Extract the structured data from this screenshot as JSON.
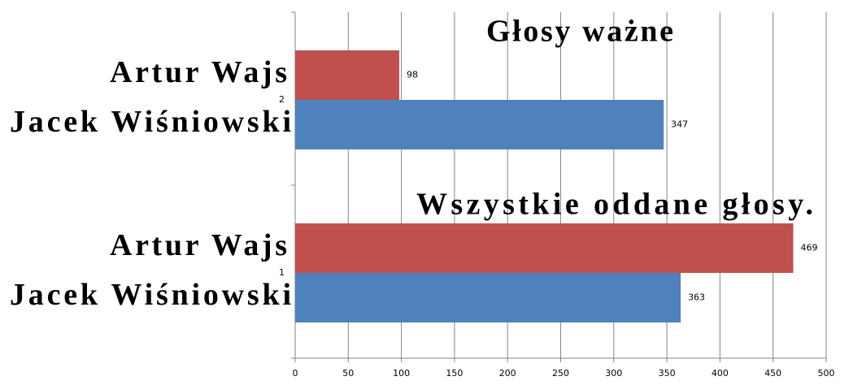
{
  "chart_data": {
    "type": "hbar",
    "categories": [
      "1",
      "2"
    ],
    "series": [
      {
        "name": "Artur Wajs",
        "color": "#c0504d",
        "values": [
          469,
          98
        ]
      },
      {
        "name": "Jacek Wiśniowski",
        "color": "#4f81bd",
        "values": [
          363,
          347
        ]
      }
    ],
    "annotations": [
      "Wszystkie oddane głosy.",
      "Głosy ważne"
    ],
    "xlim": [
      0,
      500
    ],
    "xticks": [
      0,
      50,
      100,
      150,
      200,
      250,
      300,
      350,
      400,
      450,
      500
    ],
    "grid": true
  }
}
